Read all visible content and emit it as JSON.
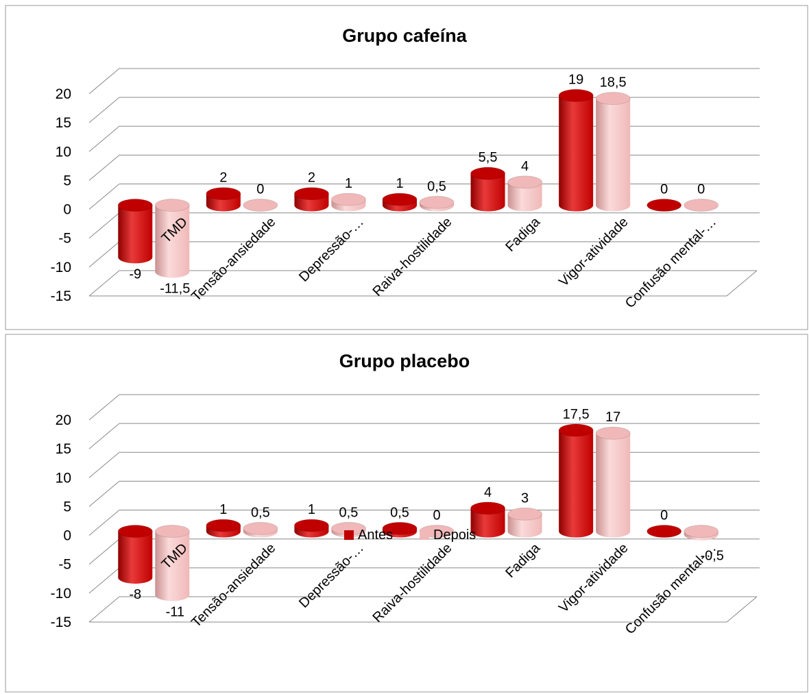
{
  "chart_data": [
    {
      "type": "bar",
      "title": "Grupo cafeína",
      "categories": [
        "TMD",
        "Tensão-ansiedade",
        "Depressão-…",
        "Raiva-hostilidade",
        "Fadiga",
        "Vigor-atividade",
        "Confusão mental-…"
      ],
      "series": [
        {
          "name": "Antes",
          "values": [
            -9,
            2,
            2,
            1,
            5.5,
            19,
            0
          ],
          "labels": [
            "-9",
            "2",
            "2",
            "1",
            "5,5",
            "19",
            "0"
          ]
        },
        {
          "name": "Depois",
          "values": [
            -11.5,
            0,
            1,
            0.5,
            4,
            18.5,
            0
          ],
          "labels": [
            "-11,5",
            "0",
            "1",
            "0,5",
            "4",
            "18,5",
            "0"
          ]
        }
      ],
      "yticks": [
        "20",
        "15",
        "10",
        "5",
        "0",
        "-5",
        "-10",
        "-15"
      ],
      "ylim": [
        -15,
        20
      ],
      "grid": true,
      "three_d": true
    },
    {
      "type": "bar",
      "title": "Grupo placebo",
      "categories": [
        "TMD",
        "Tensão-ansiedade",
        "Depressão-…",
        "Raiva-hostilidade",
        "Fadiga",
        "Vigor-atividade",
        "Confusão mental-…"
      ],
      "series": [
        {
          "name": "Antes",
          "values": [
            -8,
            1,
            1,
            0.5,
            4,
            17.5,
            0
          ],
          "labels": [
            "-8",
            "1",
            "1",
            "0,5",
            "4",
            "17,5",
            "0"
          ]
        },
        {
          "name": "Depois",
          "values": [
            -11,
            0.5,
            0.5,
            0,
            3,
            17,
            -0.5
          ],
          "labels": [
            "-11",
            "0,5",
            "0,5",
            "0",
            "3",
            "17",
            "-0,5"
          ]
        }
      ],
      "yticks": [
        "20",
        "15",
        "10",
        "5",
        "0",
        "-5",
        "-10",
        "-15"
      ],
      "ylim": [
        -15,
        20
      ],
      "grid": true,
      "three_d": true,
      "legend": {
        "position": "bottom",
        "items": [
          "Antes",
          "Depois"
        ]
      }
    }
  ],
  "colors": {
    "antes": "#c00000",
    "antes_light": "#e83a3a",
    "antes_dark": "#8e0000",
    "depois": "#f0b8b8",
    "depois_light": "#fbdada",
    "depois_dark": "#c99090",
    "grid": "#888888",
    "border": "#9a9a9a"
  }
}
